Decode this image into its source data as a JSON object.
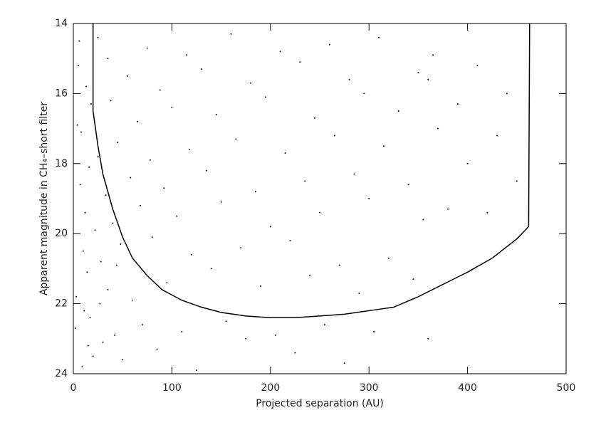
{
  "chart_data": {
    "type": "scatter",
    "xlabel": "Projected separation (AU)",
    "ylabel": "Apparent magnitude in CH₄–short filter",
    "xlim": [
      0,
      500
    ],
    "ylim": [
      24,
      14
    ],
    "xticks": [
      0,
      100,
      200,
      300,
      400,
      500
    ],
    "yticks": [
      14,
      16,
      18,
      20,
      22,
      24
    ],
    "color": "#000000",
    "x": [
      5,
      8,
      12,
      3,
      15,
      7,
      10,
      2,
      18,
      6,
      22,
      14,
      9,
      25,
      4,
      11,
      28,
      16,
      20,
      13,
      33,
      35,
      30,
      38,
      40,
      42,
      45,
      48,
      50,
      55,
      58,
      60,
      65,
      68,
      70,
      75,
      78,
      80,
      85,
      88,
      92,
      95,
      100,
      105,
      110,
      115,
      118,
      120,
      125,
      130,
      135,
      140,
      145,
      150,
      155,
      160,
      165,
      170,
      175,
      180,
      185,
      190,
      195,
      200,
      205,
      210,
      215,
      220,
      225,
      230,
      235,
      240,
      245,
      250,
      255,
      260,
      265,
      270,
      275,
      280,
      285,
      290,
      295,
      300,
      305,
      310,
      315,
      320,
      330,
      340,
      345,
      350,
      355,
      360,
      365,
      370,
      380,
      390,
      400,
      410,
      420,
      430,
      440,
      450,
      360,
      25,
      35,
      17,
      27,
      44
    ],
    "y": [
      15.2,
      17.1,
      19.4,
      21.8,
      23.2,
      18.6,
      20.5,
      22.7,
      16.3,
      14.5,
      19.9,
      21.1,
      23.8,
      17.8,
      16.9,
      22.2,
      20.8,
      18.1,
      23.5,
      15.8,
      18.9,
      21.6,
      23.1,
      16.2,
      19.7,
      22.9,
      17.4,
      20.3,
      23.6,
      15.5,
      18.4,
      21.9,
      16.8,
      19.2,
      22.6,
      14.7,
      17.9,
      20.1,
      23.3,
      15.9,
      18.7,
      21.4,
      16.4,
      19.5,
      22.8,
      14.9,
      17.6,
      20.6,
      23.9,
      15.3,
      18.2,
      21.0,
      16.6,
      19.1,
      22.5,
      14.3,
      17.3,
      20.4,
      23.0,
      15.7,
      18.8,
      21.5,
      16.1,
      19.8,
      22.9,
      14.8,
      17.7,
      20.2,
      23.4,
      15.1,
      18.5,
      21.2,
      16.7,
      19.4,
      22.6,
      14.6,
      17.2,
      20.9,
      23.7,
      15.6,
      18.3,
      21.7,
      16.0,
      19.0,
      22.8,
      14.4,
      17.5,
      20.7,
      16.5,
      18.6,
      21.3,
      15.4,
      19.6,
      23.0,
      14.9,
      17.0,
      19.3,
      16.3,
      18.0,
      15.2,
      19.4,
      17.2,
      16.0,
      18.5,
      15.6,
      14.4,
      15.0,
      22.4,
      22.0,
      20.9
    ],
    "line": {
      "type": "line",
      "color": "#000000",
      "x": [
        20,
        20,
        25,
        30,
        40,
        50,
        60,
        75,
        90,
        110,
        130,
        150,
        175,
        200,
        225,
        250,
        275,
        300,
        325,
        350,
        375,
        400,
        425,
        450,
        462,
        463
      ],
      "y": [
        14,
        16.5,
        17.5,
        18.3,
        19.3,
        20.1,
        20.7,
        21.2,
        21.6,
        21.9,
        22.1,
        22.25,
        22.35,
        22.4,
        22.4,
        22.35,
        22.3,
        22.2,
        22.1,
        21.8,
        21.45,
        21.1,
        20.7,
        20.15,
        19.8,
        14
      ]
    }
  }
}
